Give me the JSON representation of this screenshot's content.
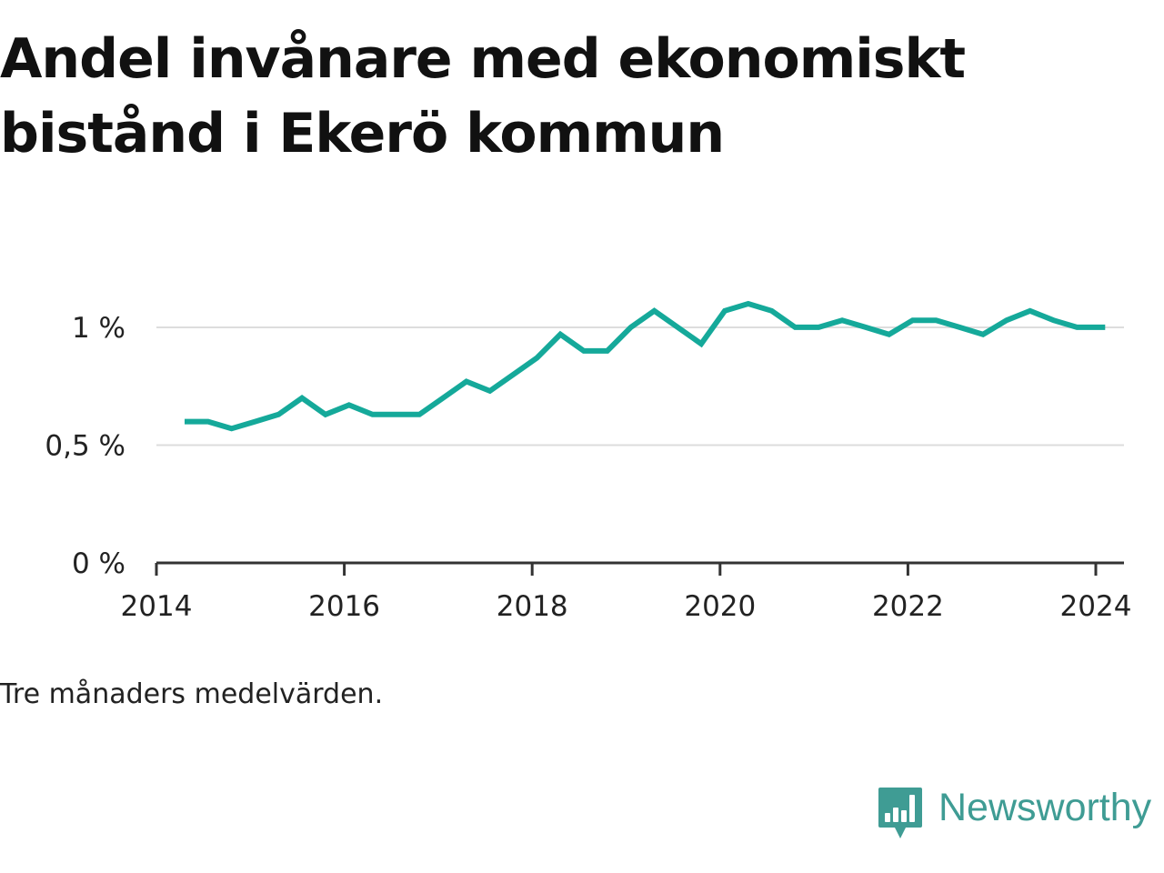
{
  "title": "Andel invånare med ekonomiskt bistånd i Ekerö kommun",
  "note": "Tre månaders medelvärden.",
  "brand": {
    "name": "Newsworthy",
    "logo_icon": "newsworthy-logo-icon",
    "color": "#3f9c94"
  },
  "colors": {
    "line": "#15a99a",
    "gridline": "#dddddd",
    "axis": "#333333",
    "text": "#222222"
  },
  "chart_data": {
    "type": "line",
    "title": "Andel invånare med ekonomiskt bistånd i Ekerö kommun",
    "xlabel": "",
    "ylabel": "",
    "xlim": [
      2014.0,
      2024.3
    ],
    "ylim": [
      0,
      1.27
    ],
    "x_ticks": [
      2014,
      2016,
      2018,
      2020,
      2022,
      2024
    ],
    "x_tick_labels": [
      "2014",
      "2016",
      "2018",
      "2020",
      "2022",
      "2024"
    ],
    "y_ticks": [
      0,
      0.5,
      1
    ],
    "y_tick_labels": [
      "0 %",
      "0,5 %",
      "1 %"
    ],
    "grid": true,
    "legend": "none",
    "series": [
      {
        "x": [
          2014.3,
          2014.55,
          2014.8,
          2015.05,
          2015.3,
          2015.55,
          2015.8,
          2016.05,
          2016.3,
          2016.55,
          2016.8,
          2017.05,
          2017.3,
          2017.55,
          2017.8,
          2018.05,
          2018.3,
          2018.55,
          2018.8,
          2019.05,
          2019.3,
          2019.55,
          2019.8,
          2020.05,
          2020.3,
          2020.55,
          2020.8,
          2021.05,
          2021.3,
          2021.55,
          2021.8,
          2022.05,
          2022.3,
          2022.55,
          2022.8,
          2023.05,
          2023.3,
          2023.55,
          2023.8,
          2024.1
        ],
        "values": [
          0.6,
          0.6,
          0.57,
          0.6,
          0.63,
          0.7,
          0.63,
          0.67,
          0.63,
          0.63,
          0.63,
          0.7,
          0.77,
          0.73,
          0.8,
          0.87,
          0.97,
          0.9,
          0.9,
          1.0,
          1.07,
          1.0,
          0.93,
          1.07,
          1.1,
          1.07,
          1.0,
          1.0,
          1.03,
          1.0,
          0.97,
          1.03,
          1.03,
          1.0,
          0.97,
          1.03,
          1.07,
          1.03,
          1.0,
          1.0
        ]
      }
    ]
  }
}
